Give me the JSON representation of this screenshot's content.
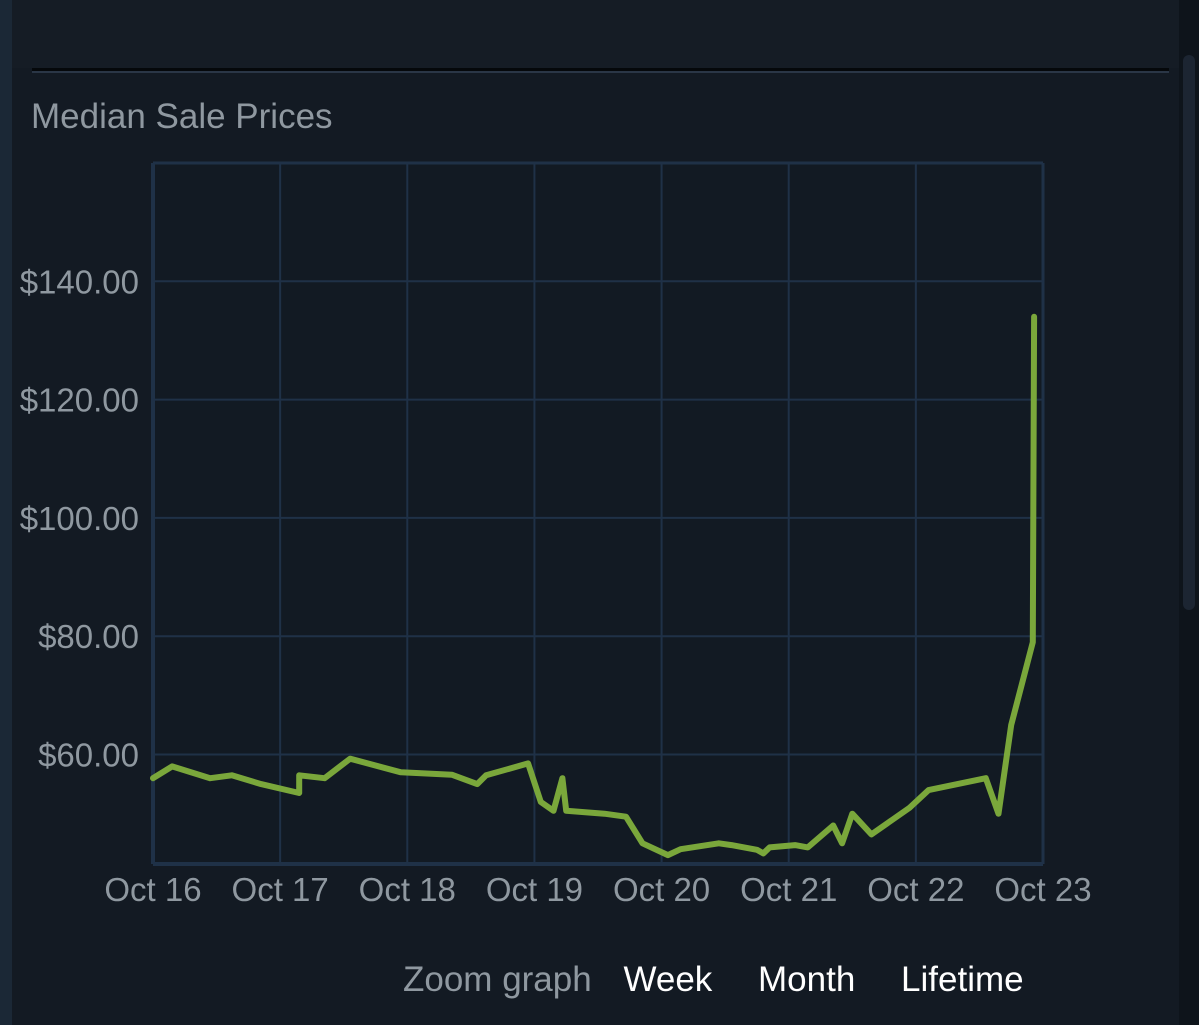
{
  "header": {
    "title": "Median Sale Prices"
  },
  "zoom": {
    "label": "Zoom graph",
    "options": [
      "Week",
      "Month",
      "Lifetime"
    ]
  },
  "colors": {
    "line": "#7aa73b",
    "grid": "#1f3147",
    "plot_bg": "#121a23",
    "text": "#8f98a0"
  },
  "chart_data": {
    "type": "line",
    "x_unit": "days",
    "categories": [
      "Oct 16",
      "Oct 17",
      "Oct 18",
      "Oct 19",
      "Oct 20",
      "Oct 21",
      "Oct 22",
      "Oct 23"
    ],
    "y_ticks": [
      60,
      80,
      100,
      120,
      140
    ],
    "y_tick_labels": [
      "$60.00",
      "$80.00",
      "$100.00",
      "$120.00",
      "$140.00"
    ],
    "ylim": [
      41.5,
      160
    ],
    "xlim": [
      0,
      7
    ],
    "grid": true,
    "series": [
      {
        "x": [
          0.0,
          0.15,
          0.45,
          0.62,
          0.85,
          1.15,
          1.15,
          1.35,
          1.55,
          1.95,
          2.35,
          2.55,
          2.62,
          2.95,
          3.05,
          3.15,
          3.22,
          3.25,
          3.55,
          3.72,
          3.85,
          4.05,
          4.15,
          4.45,
          4.55,
          4.75,
          4.8,
          4.85,
          5.05,
          5.15,
          5.35,
          5.42,
          5.5,
          5.65,
          5.95,
          6.1,
          6.55,
          6.65,
          6.75,
          6.92,
          6.93
        ],
        "y": [
          56,
          58,
          56,
          56.5,
          55,
          53.5,
          56.5,
          56,
          59.3,
          57,
          56.6,
          55,
          56.5,
          58.5,
          52,
          50.5,
          56,
          50.5,
          50,
          49.5,
          45,
          43,
          44,
          45,
          44.7,
          43.9,
          43.3,
          44.3,
          44.7,
          44.3,
          48,
          45,
          50,
          46.5,
          51,
          54,
          56,
          50,
          65,
          79,
          134
        ]
      }
    ]
  }
}
